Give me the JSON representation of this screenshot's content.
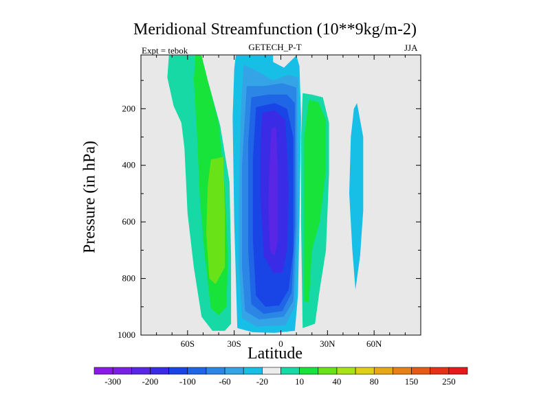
{
  "chart_data": {
    "type": "filled-contour",
    "title": "Meridional Streamfunction (10**9kg/m-2)",
    "experiment": "Expt = tebok",
    "subtitle": "GETECH_P-T",
    "season": "JJA",
    "xlabel": "Latitude",
    "ylabel": "Pressure (in hPa)",
    "x_ticks": [
      {
        "value": -60,
        "label": "60S"
      },
      {
        "value": -30,
        "label": "30S"
      },
      {
        "value": 0,
        "label": "0"
      },
      {
        "value": 30,
        "label": "30N"
      },
      {
        "value": 60,
        "label": "60N"
      }
    ],
    "y_ticks": [
      {
        "value": 200,
        "label": "200"
      },
      {
        "value": 400,
        "label": "400"
      },
      {
        "value": 600,
        "label": "600"
      },
      {
        "value": 800,
        "label": "800"
      },
      {
        "value": 1000,
        "label": "1000"
      }
    ],
    "xlim": [
      -90,
      90
    ],
    "ylim": [
      1000,
      10
    ],
    "colorbar": {
      "colors": [
        "#8b1ae8",
        "#7a1fe6",
        "#5a26e6",
        "#3a2be6",
        "#1a45e6",
        "#1f66e6",
        "#2c86e6",
        "#35a4e6",
        "#17bfe6",
        "#ececec",
        "#17d9a6",
        "#17e33a",
        "#69e317",
        "#a9e317",
        "#dfcf17",
        "#e6a817",
        "#e68017",
        "#e65a17",
        "#e63017",
        "#e61a1a"
      ],
      "labels": [
        "-300",
        "-200",
        "-100",
        "-60",
        "-20",
        "10",
        "40",
        "80",
        "150",
        "250"
      ]
    },
    "regions": [
      {
        "name": "southern-pos-outer",
        "level": 10,
        "color": "#17d9a6",
        "points": [
          [
            -72,
            12
          ],
          [
            -52,
            12
          ],
          [
            -46,
            120
          ],
          [
            -39,
            260
          ],
          [
            -33,
            460
          ],
          [
            -32,
            720
          ],
          [
            -32,
            960
          ],
          [
            -36,
            985
          ],
          [
            -44,
            985
          ],
          [
            -51,
            935
          ],
          [
            -56,
            760
          ],
          [
            -60,
            570
          ],
          [
            -62,
            340
          ],
          [
            -64,
            250
          ],
          [
            -69,
            190
          ],
          [
            -73,
            90
          ]
        ]
      },
      {
        "name": "southern-pos-40",
        "level": 40,
        "color": "#17e33a",
        "points": [
          [
            -51,
            12
          ],
          [
            -47,
            100
          ],
          [
            -40,
            250
          ],
          [
            -36,
            480
          ],
          [
            -34,
            730
          ],
          [
            -35,
            900
          ],
          [
            -40,
            930
          ],
          [
            -45,
            905
          ],
          [
            -49,
            720
          ],
          [
            -52,
            520
          ],
          [
            -54,
            280
          ],
          [
            -56,
            100
          ],
          [
            -55,
            12
          ]
        ]
      },
      {
        "name": "southern-pos-80",
        "level": 80,
        "color": "#69e317",
        "points": [
          [
            -45,
            380
          ],
          [
            -37,
            370
          ],
          [
            -36,
            560
          ],
          [
            -36,
            760
          ],
          [
            -42,
            820
          ],
          [
            -46,
            800
          ],
          [
            -48,
            640
          ],
          [
            -47,
            470
          ]
        ]
      },
      {
        "name": "neg-outer",
        "level": -20,
        "color": "#17bfe6",
        "points": [
          [
            -29,
            12
          ],
          [
            -5,
            12
          ],
          [
            -5,
            35
          ],
          [
            2,
            55
          ],
          [
            10,
            12
          ],
          [
            12,
            50
          ],
          [
            13,
            230
          ],
          [
            12,
            600
          ],
          [
            11,
            860
          ],
          [
            9,
            985
          ],
          [
            -4,
            992
          ],
          [
            -18,
            990
          ],
          [
            -28,
            975
          ],
          [
            -30,
            600
          ],
          [
            -31,
            230
          ],
          [
            -30,
            60
          ]
        ]
      },
      {
        "name": "neg-60",
        "level": -60,
        "color": "#35a4e6",
        "points": [
          [
            -24,
            45
          ],
          [
            -16,
            65
          ],
          [
            -5,
            100
          ],
          [
            5,
            80
          ],
          [
            11,
            90
          ],
          [
            11,
            600
          ],
          [
            9,
            900
          ],
          [
            3,
            965
          ],
          [
            -16,
            970
          ],
          [
            -25,
            940
          ],
          [
            -27,
            760
          ],
          [
            -27,
            520
          ],
          [
            -26,
            240
          ]
        ]
      },
      {
        "name": "neg-100a",
        "level": -100,
        "color": "#2c86e6",
        "points": [
          [
            -22,
            120
          ],
          [
            -11,
            120
          ],
          [
            1,
            110
          ],
          [
            10,
            125
          ],
          [
            10,
            600
          ],
          [
            8,
            880
          ],
          [
            2,
            935
          ],
          [
            -14,
            945
          ],
          [
            -23,
            915
          ],
          [
            -25,
            760
          ],
          [
            -25,
            400
          ]
        ]
      },
      {
        "name": "neg-100b",
        "level": -100,
        "color": "#1f66e6",
        "points": [
          [
            -19,
            160
          ],
          [
            -8,
            150
          ],
          [
            4,
            150
          ],
          [
            9,
            180
          ],
          [
            9,
            620
          ],
          [
            7,
            850
          ],
          [
            1,
            915
          ],
          [
            -11,
            925
          ],
          [
            -19,
            890
          ],
          [
            -21,
            700
          ],
          [
            -21,
            320
          ]
        ]
      },
      {
        "name": "neg-200",
        "level": -200,
        "color": "#1a45e6",
        "points": [
          [
            -16,
            195
          ],
          [
            -4,
            180
          ],
          [
            4,
            200
          ],
          [
            8,
            300
          ],
          [
            8,
            700
          ],
          [
            5,
            840
          ],
          [
            -1,
            895
          ],
          [
            -10,
            900
          ],
          [
            -16,
            860
          ],
          [
            -18,
            660
          ],
          [
            -18,
            380
          ]
        ]
      },
      {
        "name": "neg-300",
        "level": -300,
        "color": "#3a2be6",
        "points": [
          [
            -12,
            215
          ],
          [
            -4,
            205
          ],
          [
            3,
            240
          ],
          [
            5,
            480
          ],
          [
            4,
            700
          ],
          [
            1,
            780
          ],
          [
            -5,
            780
          ],
          [
            -11,
            720
          ],
          [
            -13,
            520
          ],
          [
            -13,
            320
          ]
        ]
      },
      {
        "name": "neg-core",
        "level": -300,
        "color": "#5a26e6",
        "points": [
          [
            -6,
            270
          ],
          [
            -3,
            265
          ],
          [
            -2,
            420
          ],
          [
            -2,
            660
          ],
          [
            -4,
            720
          ],
          [
            -7,
            700
          ],
          [
            -8,
            520
          ],
          [
            -7,
            360
          ]
        ]
      },
      {
        "name": "northern-pos-outer",
        "level": 10,
        "color": "#17d9a6",
        "points": [
          [
            14,
            145
          ],
          [
            20,
            150
          ],
          [
            27,
            160
          ],
          [
            31,
            250
          ],
          [
            31,
            430
          ],
          [
            29,
            700
          ],
          [
            25,
            840
          ],
          [
            22,
            960
          ],
          [
            14,
            975
          ],
          [
            13,
            600
          ],
          [
            13,
            300
          ]
        ]
      },
      {
        "name": "northern-pos-40",
        "level": 40,
        "color": "#17e33a",
        "points": [
          [
            18,
            170
          ],
          [
            24,
            175
          ],
          [
            29,
            240
          ],
          [
            29,
            420
          ],
          [
            25,
            600
          ],
          [
            20,
            700
          ],
          [
            18,
            885
          ],
          [
            15,
            880
          ],
          [
            15,
            600
          ],
          [
            15,
            300
          ]
        ]
      },
      {
        "name": "northern-neg-cell",
        "level": -20,
        "color": "#17bfe6",
        "points": [
          [
            49,
            180
          ],
          [
            53,
            300
          ],
          [
            53,
            560
          ],
          [
            51,
            720
          ],
          [
            48,
            840
          ],
          [
            46,
            700
          ],
          [
            44,
            500
          ],
          [
            45,
            300
          ],
          [
            47,
            200
          ]
        ]
      }
    ]
  }
}
